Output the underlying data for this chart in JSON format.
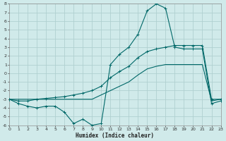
{
  "title": "",
  "xlabel": "Humidex (Indice chaleur)",
  "bg_color": "#d0eaea",
  "grid_color": "#b0d0d0",
  "line_color": "#006868",
  "xmin": 0,
  "xmax": 23,
  "ymin": -6,
  "ymax": 8,
  "xticks": [
    0,
    1,
    2,
    3,
    4,
    5,
    6,
    7,
    8,
    9,
    10,
    11,
    12,
    13,
    14,
    15,
    16,
    17,
    18,
    19,
    20,
    21,
    22,
    23
  ],
  "yticks": [
    -6,
    -5,
    -4,
    -3,
    -2,
    -1,
    0,
    1,
    2,
    3,
    4,
    5,
    6,
    7,
    8
  ],
  "line1_x": [
    0,
    1,
    2,
    3,
    4,
    5,
    6,
    7,
    8,
    9,
    10,
    11,
    12,
    13,
    14,
    15,
    16,
    17,
    18,
    19,
    20,
    21,
    22,
    23
  ],
  "line1_y": [
    -3.0,
    -3.5,
    -3.8,
    -4.0,
    -3.8,
    -3.8,
    -4.5,
    -5.8,
    -5.3,
    -6.0,
    -5.8,
    1.0,
    2.2,
    3.0,
    4.5,
    7.2,
    8.0,
    7.5,
    3.0,
    2.8,
    2.8,
    2.8,
    -3.5,
    -3.2
  ],
  "line2_x": [
    0,
    1,
    2,
    3,
    4,
    5,
    6,
    7,
    8,
    9,
    10,
    11,
    12,
    13,
    14,
    15,
    16,
    17,
    18,
    19,
    20,
    21,
    22,
    23
  ],
  "line2_y": [
    -3.0,
    -3.2,
    -3.2,
    -3.0,
    -2.9,
    -2.8,
    -2.7,
    -2.5,
    -2.3,
    -2.0,
    -1.5,
    -0.5,
    0.2,
    0.8,
    1.8,
    2.5,
    2.8,
    3.0,
    3.2,
    3.2,
    3.2,
    3.2,
    -3.0,
    -3.0
  ],
  "line3_x": [
    0,
    1,
    2,
    3,
    4,
    5,
    6,
    7,
    8,
    9,
    10,
    11,
    12,
    13,
    14,
    15,
    16,
    17,
    18,
    19,
    20,
    21,
    22,
    23
  ],
  "line3_y": [
    -3.0,
    -3.0,
    -3.0,
    -3.0,
    -3.0,
    -3.0,
    -3.0,
    -3.0,
    -3.0,
    -3.0,
    -2.5,
    -2.0,
    -1.5,
    -1.0,
    -0.2,
    0.5,
    0.8,
    1.0,
    1.0,
    1.0,
    1.0,
    1.0,
    -3.2,
    -3.0
  ]
}
